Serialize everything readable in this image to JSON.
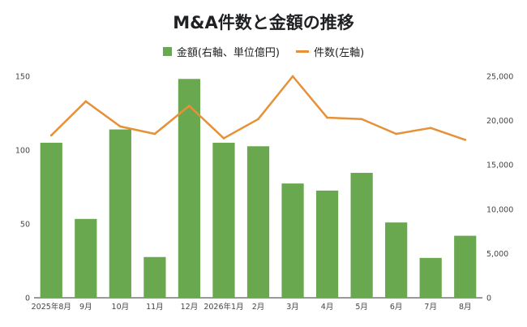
{
  "chart_data": {
    "type": "bar",
    "title": "M&A件数と金額の推移",
    "categories": [
      "2025年8月",
      "9月",
      "10月",
      "11月",
      "12月",
      "2026年1月",
      "2月",
      "3月",
      "4月",
      "5月",
      "6月",
      "7月",
      "8月"
    ],
    "series": [
      {
        "name": "金額(右軸、単位億円)",
        "type": "bar",
        "axis": "right",
        "color": "#6aa84f",
        "values": [
          17500,
          8900,
          19000,
          4600,
          24700,
          17500,
          17100,
          12900,
          12100,
          14100,
          8500,
          4500,
          7000
        ]
      },
      {
        "name": "件数(左軸)",
        "type": "line",
        "axis": "left",
        "color": "#e69138",
        "values": [
          110,
          133,
          116,
          111,
          130,
          108,
          121,
          150,
          122,
          121,
          111,
          115,
          107
        ]
      }
    ],
    "y_left": {
      "ylim": [
        0,
        150
      ],
      "ticks": [
        "0",
        "50",
        "100",
        "150"
      ]
    },
    "y_right": {
      "ylim": [
        0,
        25000
      ],
      "ticks": [
        "0",
        "5,000",
        "10,000",
        "15,000",
        "20,000",
        "25,000"
      ]
    },
    "grid": false,
    "legend_position": "top"
  }
}
